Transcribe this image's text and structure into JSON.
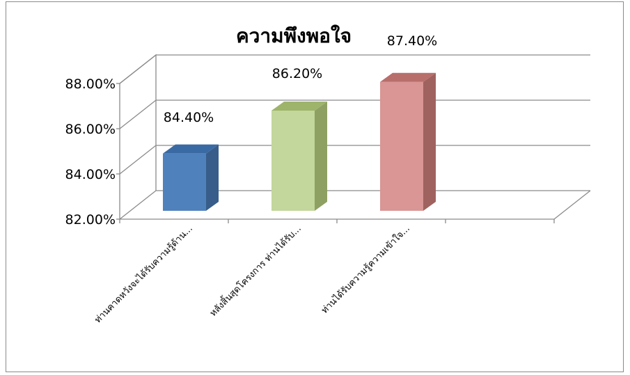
{
  "chart_data": {
    "type": "bar",
    "title": "ความพึงพอใจ",
    "categories": [
      "ท่านคาดหวังจะได้รับความรู้ด้าน...",
      "หลังสิ้นสุดโครงการ ท่านได้รับ...",
      "ท่านได้รับความรู้ความเข้าใจ..."
    ],
    "values": [
      84.4,
      86.2,
      87.4
    ],
    "value_labels": [
      "84.40%",
      "86.20%",
      "87.40%"
    ],
    "yticks": [
      "82.00%",
      "84.00%",
      "86.00%",
      "88.00%"
    ],
    "ylim": [
      82,
      88
    ],
    "xlabel": "",
    "ylabel": "",
    "grid": true,
    "legend": "none",
    "colors": {
      "front": [
        "#4f81bd",
        "#c3d69b",
        "#d99694"
      ],
      "side": [
        "#385d8a",
        "#8ea163",
        "#a0625f"
      ],
      "top": [
        "#3a6aa3",
        "#9db46a",
        "#b86e6b"
      ]
    }
  }
}
